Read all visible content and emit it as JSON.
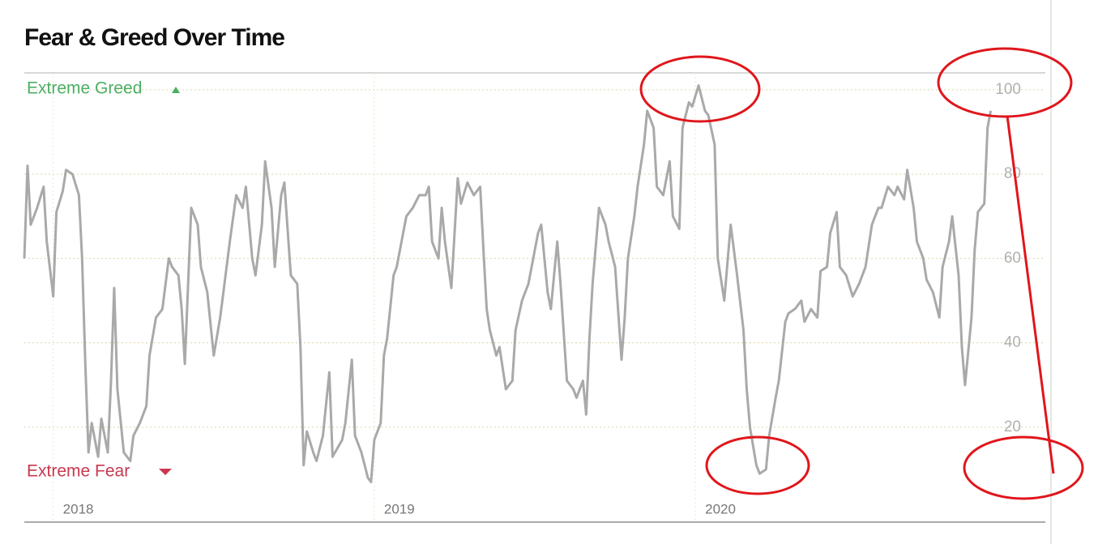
{
  "chart_data": {
    "type": "line",
    "title": "Fear & Greed Over Time",
    "annotations": {
      "top": "Extreme Greed",
      "bottom": "Extreme Fear"
    },
    "xlim": [
      2017.91,
      2021.09
    ],
    "xticks": [
      2018,
      2019,
      2020
    ],
    "ylim": [
      0,
      104
    ],
    "yticks": [
      20,
      40,
      60,
      80,
      100
    ],
    "grid": true,
    "series": [
      {
        "color": "#a9a9a9",
        "x": [
          2017.91,
          2017.92,
          2017.93,
          2017.95,
          2017.97,
          2017.98,
          2018.0,
          2018.01,
          2018.03,
          2018.04,
          2018.06,
          2018.08,
          2018.09,
          2018.1,
          2018.11,
          2018.12,
          2018.14,
          2018.15,
          2018.17,
          2018.18,
          2018.19,
          2018.2,
          2018.22,
          2018.24,
          2018.25,
          2018.27,
          2018.29,
          2018.3,
          2018.32,
          2018.34,
          2018.36,
          2018.37,
          2018.39,
          2018.4,
          2018.41,
          2018.43,
          2018.45,
          2018.46,
          2018.48,
          2018.5,
          2018.52,
          2018.53,
          2018.55,
          2018.57,
          2018.59,
          2018.6,
          2018.62,
          2018.63,
          2018.65,
          2018.66,
          2018.68,
          2018.69,
          2018.71,
          2018.72,
          2018.74,
          2018.76,
          2018.77,
          2018.78,
          2018.79,
          2018.81,
          2018.82,
          2018.84,
          2018.86,
          2018.87,
          2018.9,
          2018.91,
          2018.93,
          2018.94,
          2018.96,
          2018.98,
          2018.99,
          2019.0,
          2019.02,
          2019.03,
          2019.04,
          2019.06,
          2019.07,
          2019.09,
          2019.1,
          2019.12,
          2019.14,
          2019.16,
          2019.17,
          2019.18,
          2019.2,
          2019.21,
          2019.22,
          2019.24,
          2019.26,
          2019.27,
          2019.29,
          2019.31,
          2019.33,
          2019.34,
          2019.35,
          2019.36,
          2019.38,
          2019.39,
          2019.41,
          2019.43,
          2019.44,
          2019.46,
          2019.48,
          2019.5,
          2019.51,
          2019.52,
          2019.54,
          2019.55,
          2019.57,
          2019.58,
          2019.6,
          2019.62,
          2019.63,
          2019.65,
          2019.66,
          2019.67,
          2019.68,
          2019.7,
          2019.72,
          2019.73,
          2019.75,
          2019.77,
          2019.78,
          2019.79,
          2019.81,
          2019.82,
          2019.84,
          2019.85,
          2019.87,
          2019.88,
          2019.9,
          2019.92,
          2019.93,
          2019.95,
          2019.96,
          2019.98,
          2019.99,
          2020.01,
          2020.03,
          2020.04,
          2020.06,
          2020.07,
          2020.09,
          2020.11,
          2020.12,
          2020.13,
          2020.15,
          2020.16,
          2020.17,
          2020.19,
          2020.2,
          2020.22,
          2020.23,
          2020.25,
          2020.26,
          2020.28,
          2020.29,
          2020.31,
          2020.33,
          2020.34,
          2020.36,
          2020.38,
          2020.39,
          2020.41,
          2020.42,
          2020.44,
          2020.45,
          2020.47,
          2020.49,
          2020.51,
          2020.53,
          2020.55,
          2020.57,
          2020.58,
          2020.6,
          2020.62,
          2020.63,
          2020.65,
          2020.66,
          2020.68,
          2020.69,
          2020.71,
          2020.72,
          2020.74,
          2020.76,
          2020.77,
          2020.79,
          2020.8,
          2020.82,
          2020.83,
          2020.84,
          2020.86,
          2020.87,
          2020.88,
          2020.9,
          2020.91,
          2020.92
        ],
        "values": [
          60,
          82,
          68,
          72,
          77,
          64,
          51,
          71,
          76,
          81,
          80,
          75,
          60,
          35,
          14,
          21,
          13,
          22,
          14,
          31,
          53,
          29,
          14,
          12,
          18,
          21,
          25,
          37,
          46,
          48,
          60,
          58,
          56,
          48,
          35,
          72,
          68,
          58,
          52,
          37,
          46,
          52,
          64,
          75,
          72,
          77,
          60,
          56,
          68,
          83,
          72,
          58,
          75,
          78,
          56,
          54,
          39,
          11,
          19,
          14,
          12,
          18,
          33,
          13,
          17,
          21,
          36,
          18,
          14,
          8,
          7,
          17,
          21,
          37,
          41,
          56,
          58,
          66,
          70,
          72,
          75,
          75,
          77,
          64,
          60,
          72,
          64,
          53,
          79,
          73,
          78,
          75,
          77,
          62,
          48,
          43,
          37,
          39,
          29,
          31,
          43,
          50,
          54,
          62,
          66,
          68,
          52,
          48,
          64,
          54,
          31,
          29,
          27,
          31,
          23,
          41,
          54,
          72,
          68,
          64,
          58,
          36,
          46,
          60,
          70,
          77,
          87,
          95,
          91,
          77,
          75,
          83,
          70,
          67,
          91,
          97,
          96,
          101,
          95,
          94,
          87,
          60,
          50,
          68,
          62,
          56,
          43,
          29,
          20,
          11,
          9,
          10,
          18,
          27,
          31,
          45,
          47,
          48,
          50,
          45,
          48,
          46,
          57,
          58,
          66,
          71,
          58,
          56,
          51,
          54,
          58,
          68,
          72,
          72,
          77,
          75,
          77,
          74,
          81,
          72,
          64,
          60,
          55,
          52,
          46,
          58,
          64,
          70,
          56,
          39,
          30,
          46,
          62,
          71,
          73,
          91,
          95
        ]
      }
    ]
  }
}
